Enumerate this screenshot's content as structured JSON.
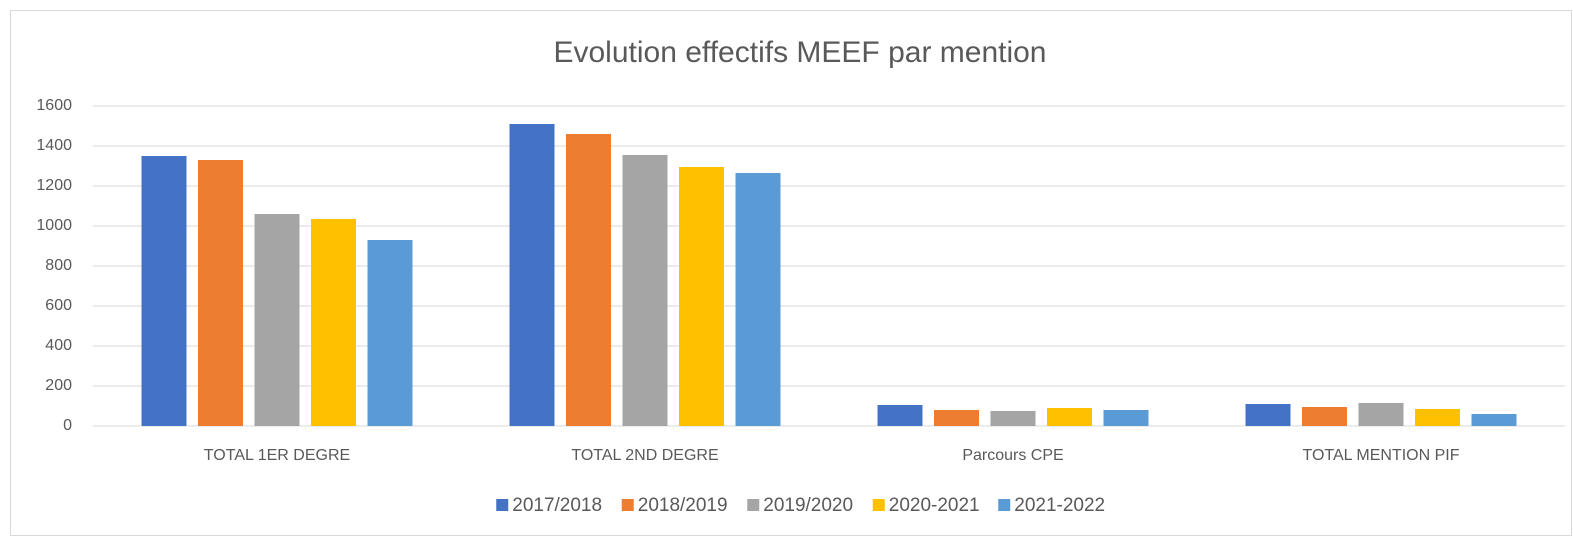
{
  "chart_data": {
    "type": "bar",
    "title": "Evolution effectifs MEEF par mention",
    "categories": [
      "TOTAL 1ER DEGRE",
      "TOTAL 2ND DEGRE",
      "Parcours CPE",
      "TOTAL MENTION PIF"
    ],
    "series": [
      {
        "name": "2017/2018",
        "color": "#4472c4",
        "values": [
          1350,
          1510,
          105,
          110
        ]
      },
      {
        "name": "2018/2019",
        "color": "#ed7d31",
        "values": [
          1330,
          1460,
          80,
          95
        ]
      },
      {
        "name": "2019/2020",
        "color": "#a5a5a5",
        "values": [
          1060,
          1355,
          75,
          115
        ]
      },
      {
        "name": "2020-2021",
        "color": "#ffc000",
        "values": [
          1035,
          1295,
          90,
          85
        ]
      },
      {
        "name": "2021-2022",
        "color": "#5b9bd5",
        "values": [
          930,
          1265,
          80,
          60
        ]
      }
    ],
    "ylim": [
      0,
      1600
    ],
    "yticks": [
      0,
      200,
      400,
      600,
      800,
      1000,
      1200,
      1400,
      1600
    ],
    "grid": true,
    "legend": "bottom"
  }
}
